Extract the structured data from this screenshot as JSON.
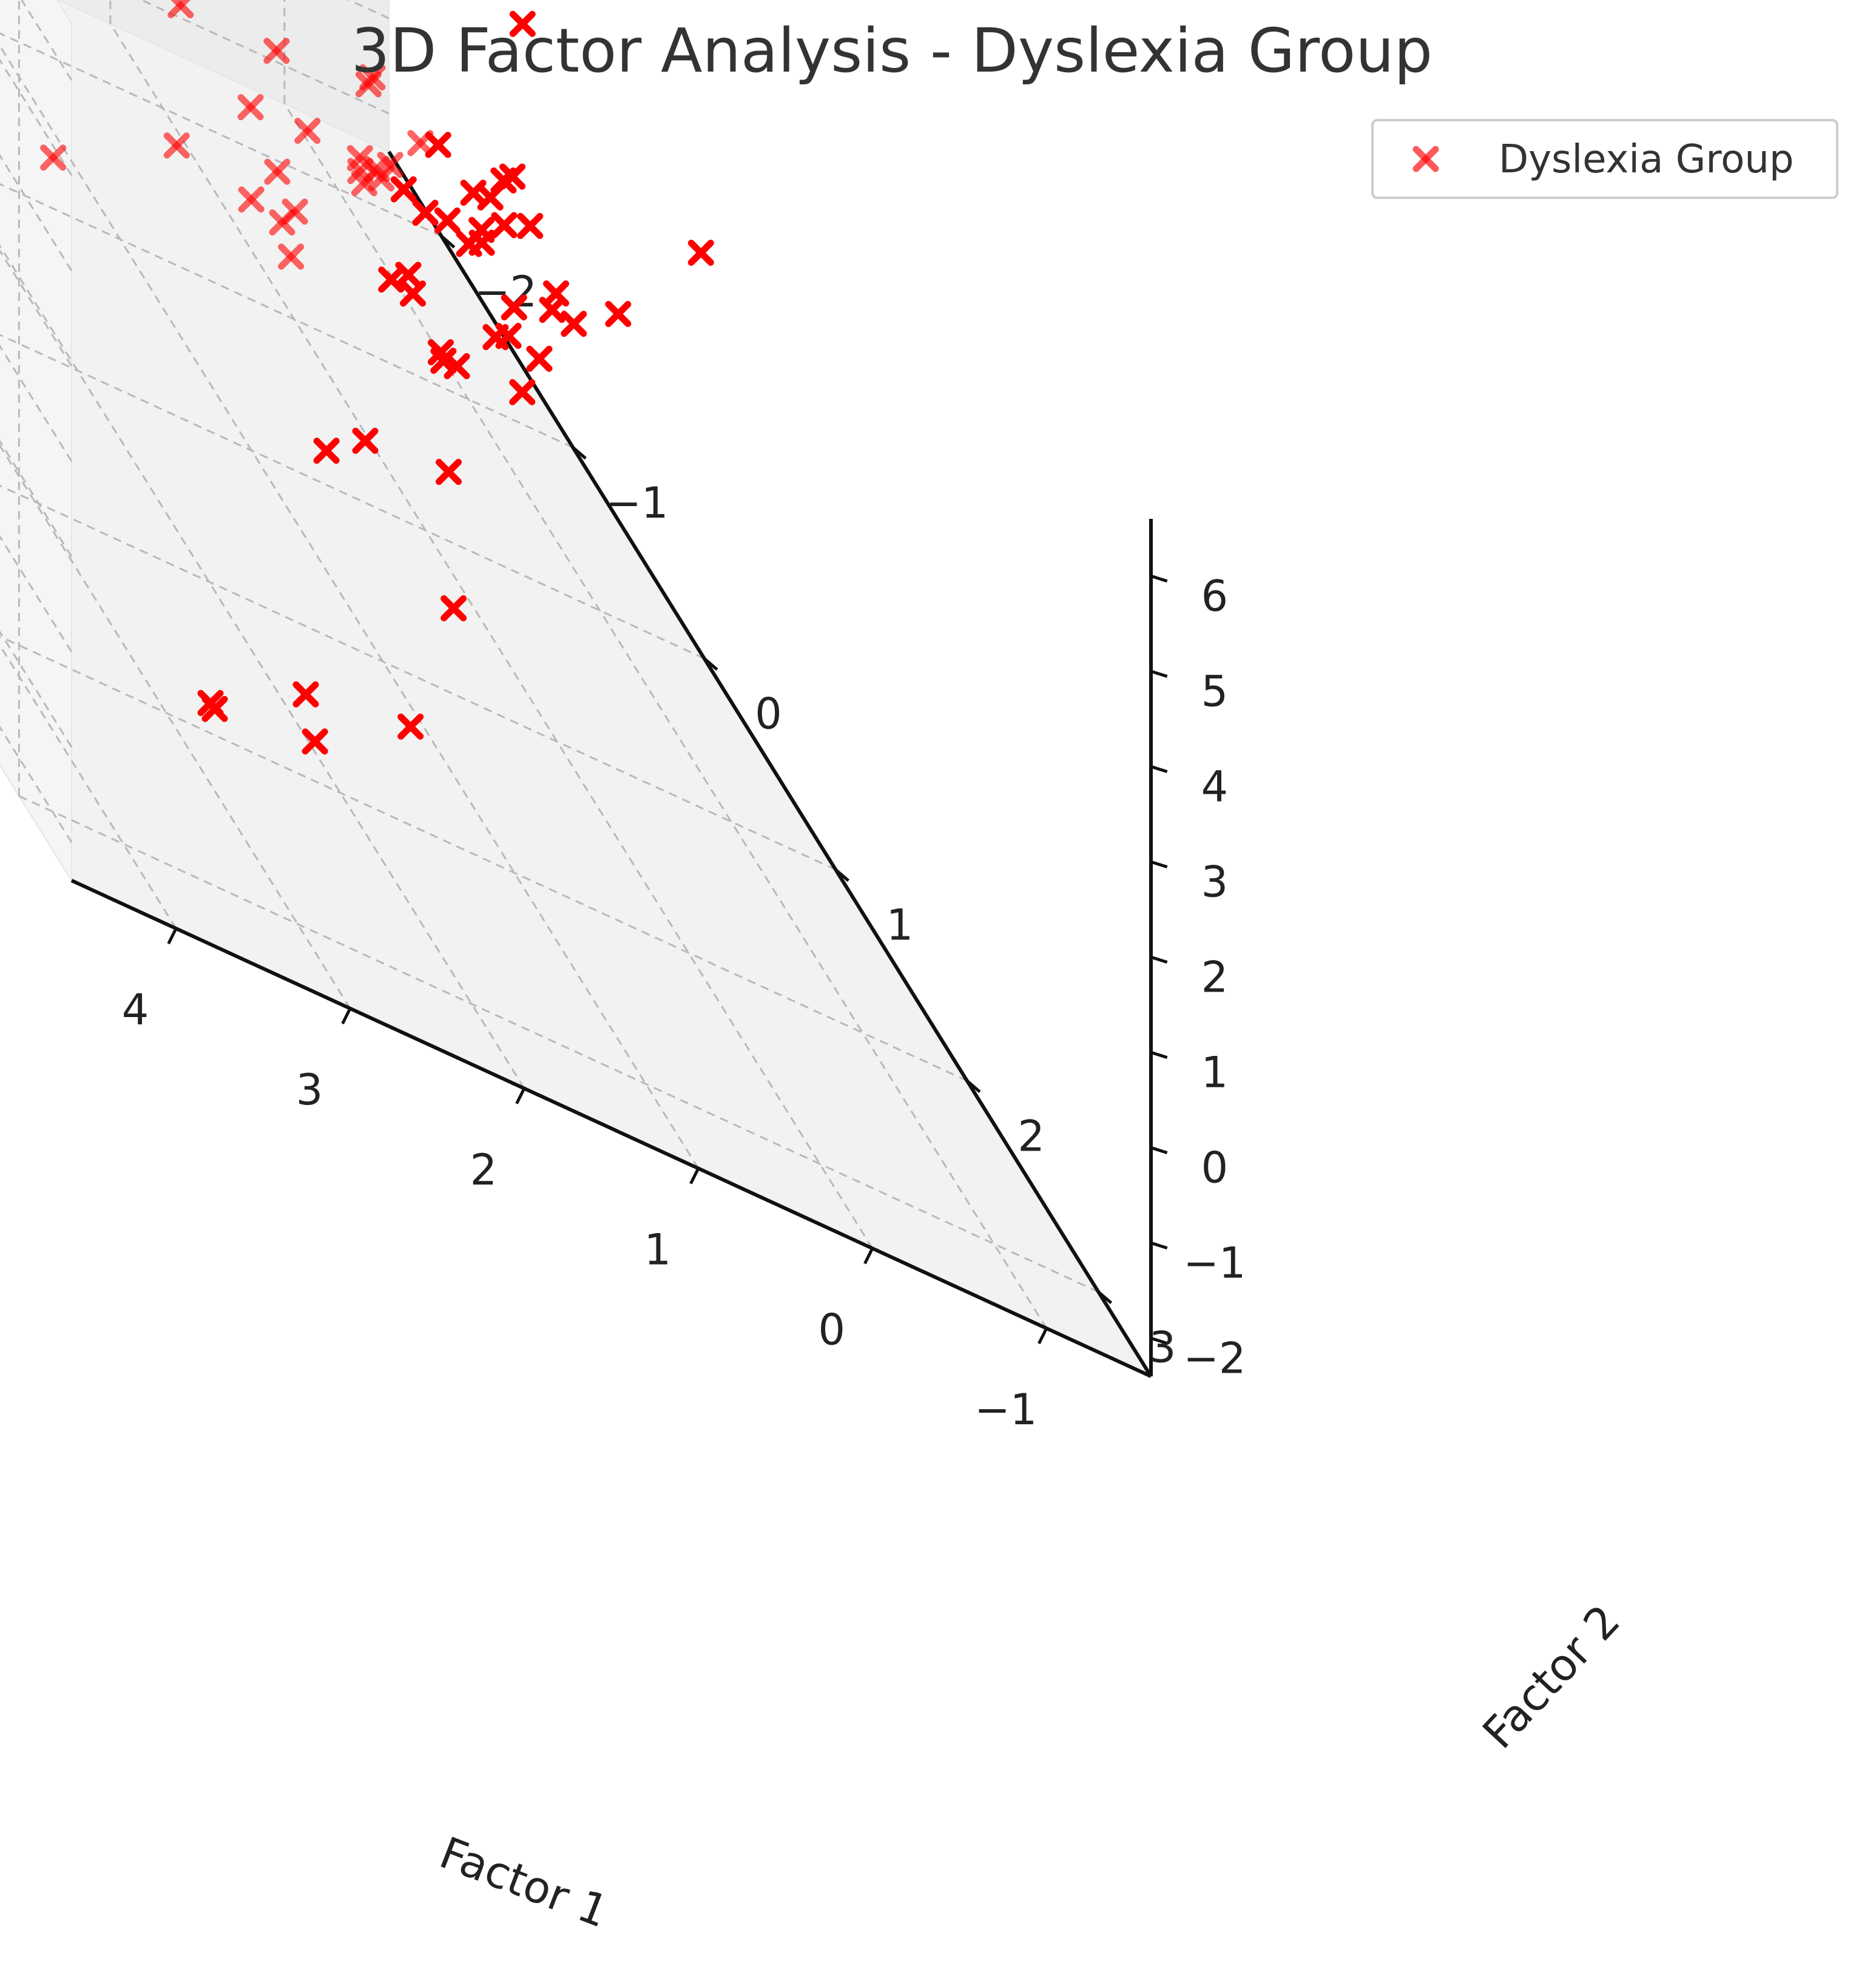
{
  "chart_data": {
    "type": "scatter",
    "projection": "3d",
    "title": "3D Factor Analysis - Dyslexia Group",
    "xlabel": "Factor 1",
    "ylabel": "Factor 2",
    "zlabel": "",
    "xlim": [
      -1.6,
      4.6
    ],
    "ylim": [
      -2.4,
      3.4
    ],
    "zlim": [
      -2.4,
      6.6
    ],
    "x_ticks": [
      "−1",
      "0",
      "1",
      "2",
      "3",
      "4"
    ],
    "y_ticks": [
      "−2",
      "−1",
      "0",
      "1",
      "2",
      "3"
    ],
    "z_ticks": [
      "−2",
      "−1",
      "0",
      "1",
      "2",
      "3",
      "4",
      "5",
      "6"
    ],
    "grid": true,
    "legend": {
      "position": "top-right",
      "entries": [
        "Dyslexia Group"
      ]
    },
    "marker": "x",
    "color": "#ff0000",
    "series": [
      {
        "name": "Dyslexia Group",
        "points": [
          [
            0.5,
            1.4,
            5.6
          ],
          [
            -0.6,
            1.3,
            3.9
          ],
          [
            -0.2,
            1.2,
            2.7
          ],
          [
            0.7,
            1.6,
            2.9
          ],
          [
            1.8,
            2.5,
            3.5
          ],
          [
            3.8,
            2.2,
            3.2
          ],
          [
            0.2,
            1.0,
            1.1
          ],
          [
            0.5,
            0.9,
            0.9
          ],
          [
            1.0,
            1.5,
            0.7
          ],
          [
            1.5,
            2.2,
            0.4
          ],
          [
            2.2,
            2.8,
            -0.1
          ],
          [
            3.5,
            3.0,
            -0.5
          ],
          [
            3.4,
            2.9,
            -0.7
          ],
          [
            2.9,
            3.0,
            -0.4
          ],
          [
            2.5,
            2.4,
            -0.9
          ],
          [
            1.4,
            1.1,
            -0.3
          ],
          [
            1.0,
            0.3,
            0.3
          ],
          [
            0.2,
            0.4,
            0.1
          ],
          [
            -0.2,
            0.6,
            0.9
          ],
          [
            0.8,
            0.6,
            -0.8
          ],
          [
            0.1,
            -1.2,
            -0.7
          ],
          [
            -0.9,
            -0.7,
            0.3
          ],
          [
            -1.0,
            -0.9,
            -0.4
          ],
          [
            -0.7,
            -1.3,
            -0.9
          ],
          [
            -0.3,
            -2.0,
            -0.8
          ],
          [
            0.6,
            -1.1,
            -1.3
          ],
          [
            -0.1,
            -0.6,
            0.0
          ],
          [
            -0.4,
            -0.2,
            0.5
          ],
          [
            0.0,
            -0.5,
            0.4
          ],
          [
            -0.5,
            -0.3,
            0.9
          ],
          [
            -0.6,
            0.0,
            1.3
          ],
          [
            -0.8,
            -0.4,
            1.1
          ],
          [
            -0.3,
            0.2,
            1.5
          ],
          [
            -0.2,
            -0.1,
            0.8
          ],
          [
            0.3,
            0.3,
            0.5
          ],
          [
            -0.1,
            0.4,
            0.6
          ],
          [
            -0.7,
            -0.5,
            0.1
          ],
          [
            -0.9,
            -0.2,
            0.4
          ],
          [
            -0.4,
            -0.8,
            0.0
          ],
          [
            0.0,
            -0.9,
            -0.2
          ],
          [
            0.4,
            -0.6,
            -0.3
          ],
          [
            0.6,
            -0.2,
            0.0
          ],
          [
            0.9,
            0.1,
            0.3
          ],
          [
            0.7,
            -0.4,
            -0.4
          ],
          [
            -0.5,
            -1.0,
            -0.5
          ],
          [
            -0.8,
            -1.1,
            -0.1
          ],
          [
            -0.2,
            -1.4,
            -0.3
          ],
          [
            0.2,
            -1.6,
            -0.6
          ],
          [
            -0.6,
            -0.7,
            0.6
          ],
          [
            -0.3,
            -0.4,
            0.3
          ],
          [
            -0.9,
            -0.6,
            0.7
          ],
          [
            -0.4,
            0.1,
            0.2
          ],
          [
            0.1,
            0.0,
            0.2
          ],
          [
            -0.1,
            -0.3,
            0.6
          ],
          [
            0.3,
            -0.1,
            0.9
          ],
          [
            -0.7,
            0.2,
            0.8
          ],
          [
            -0.5,
            0.3,
            1.0
          ],
          [
            -0.2,
            -0.7,
            0.9
          ],
          [
            0.5,
            0.4,
            0.7
          ],
          [
            -0.6,
            -1.2,
            0.2
          ]
        ]
      }
    ]
  }
}
